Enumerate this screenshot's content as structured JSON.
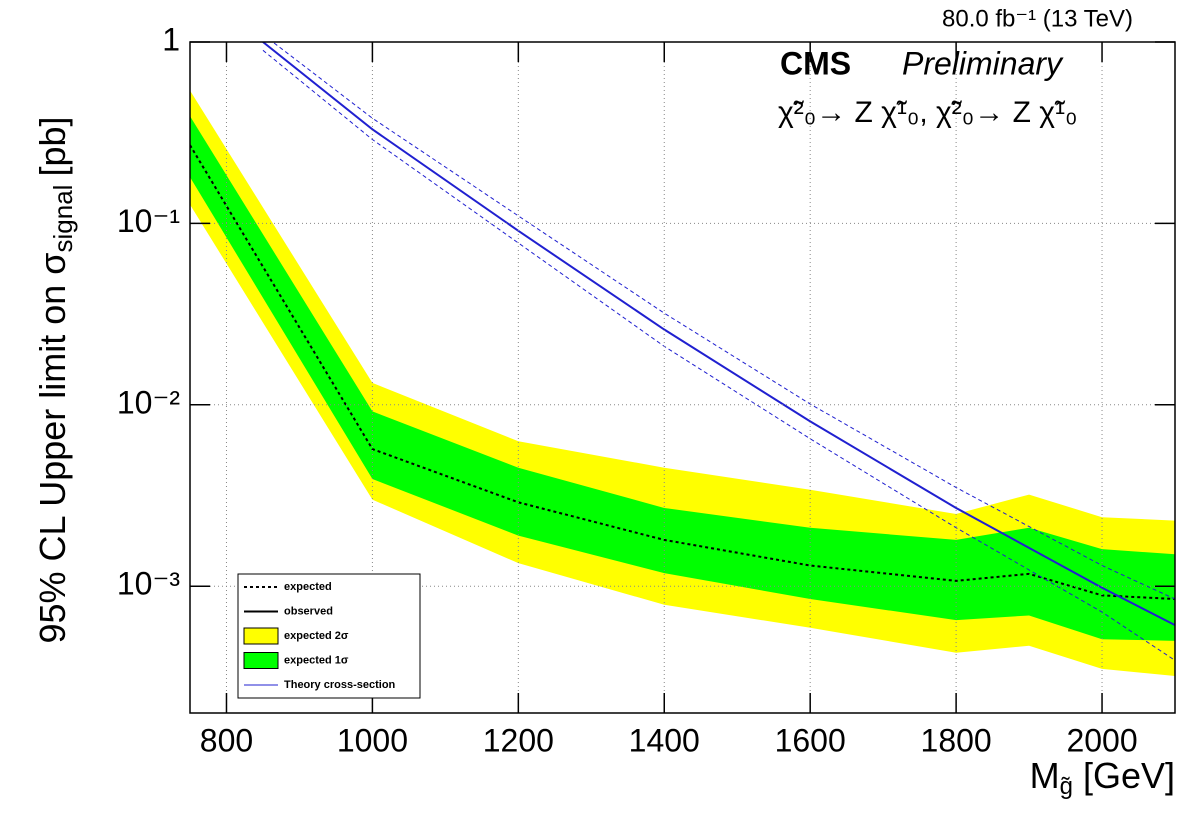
{
  "chart_data": {
    "type": "band_line",
    "log_y": true,
    "grid": true,
    "lumi": "80.0 fb⁻¹ (13 TeV)",
    "experiment": "CMS",
    "status": "Preliminary",
    "process": "χ̃²₀→ Z χ̃¹₀, χ̃²₀→ Z χ̃¹₀",
    "ylabel": {
      "main": "95% CL Upper limit on σ",
      "sub": "signal",
      "unit": "[pb]"
    },
    "xlabel": {
      "main": "M",
      "sub": "g̃",
      "unit": "[GeV]"
    },
    "xlim": [
      750,
      2100
    ],
    "ylim": [
      0.0002,
      1
    ],
    "xticks": [
      800,
      1000,
      1200,
      1400,
      1600,
      1800,
      2000
    ],
    "yticks": [
      {
        "value": 0.001,
        "label": "10⁻³"
      },
      {
        "value": 0.01,
        "label": "10⁻²"
      },
      {
        "value": 0.1,
        "label": "10⁻¹"
      },
      1
    ],
    "x": [
      750,
      1000,
      1200,
      1400,
      1600,
      1800,
      1900,
      2000,
      2100
    ],
    "bands": [
      {
        "name": "expected 2σ",
        "color": "#ffff00",
        "upper": [
          0.54,
          0.0132,
          0.0063,
          0.0045,
          0.0034,
          0.0025,
          0.0032,
          0.0024,
          0.0023
        ],
        "lower": [
          0.127,
          0.003,
          0.00134,
          0.00079,
          0.00059,
          0.00043,
          0.00047,
          0.00035,
          0.00032
        ]
      },
      {
        "name": "expected 1σ",
        "color": "#00ff00",
        "upper": [
          0.39,
          0.0092,
          0.0045,
          0.0027,
          0.0021,
          0.0018,
          0.0021,
          0.0016,
          0.0015
        ],
        "lower": [
          0.18,
          0.0039,
          0.0019,
          0.00118,
          0.00085,
          0.00065,
          0.00069,
          0.00051,
          0.0005
        ]
      }
    ],
    "series": [
      {
        "name": "expected",
        "color": "#000000",
        "dash": "3,3",
        "values": [
          0.27,
          0.0057,
          0.0029,
          0.0018,
          0.0013,
          0.00107,
          0.00117,
          0.00089,
          0.00085
        ]
      },
      {
        "name": "Theory cross-section",
        "color": "#2020d0",
        "x": [
          850,
          1000,
          1200,
          1400,
          1600,
          1800,
          2000,
          2100
        ],
        "values": [
          1.0,
          0.33,
          0.091,
          0.026,
          0.0081,
          0.0027,
          0.00098,
          0.00061
        ],
        "up": [
          1.1,
          0.38,
          0.11,
          0.032,
          0.0101,
          0.0035,
          0.0013,
          0.00085
        ],
        "down": [
          0.9,
          0.29,
          0.078,
          0.021,
          0.0065,
          0.0021,
          0.00072,
          0.00039
        ]
      }
    ],
    "legend_only": [
      {
        "name": "observed",
        "color": "#000000"
      }
    ]
  }
}
